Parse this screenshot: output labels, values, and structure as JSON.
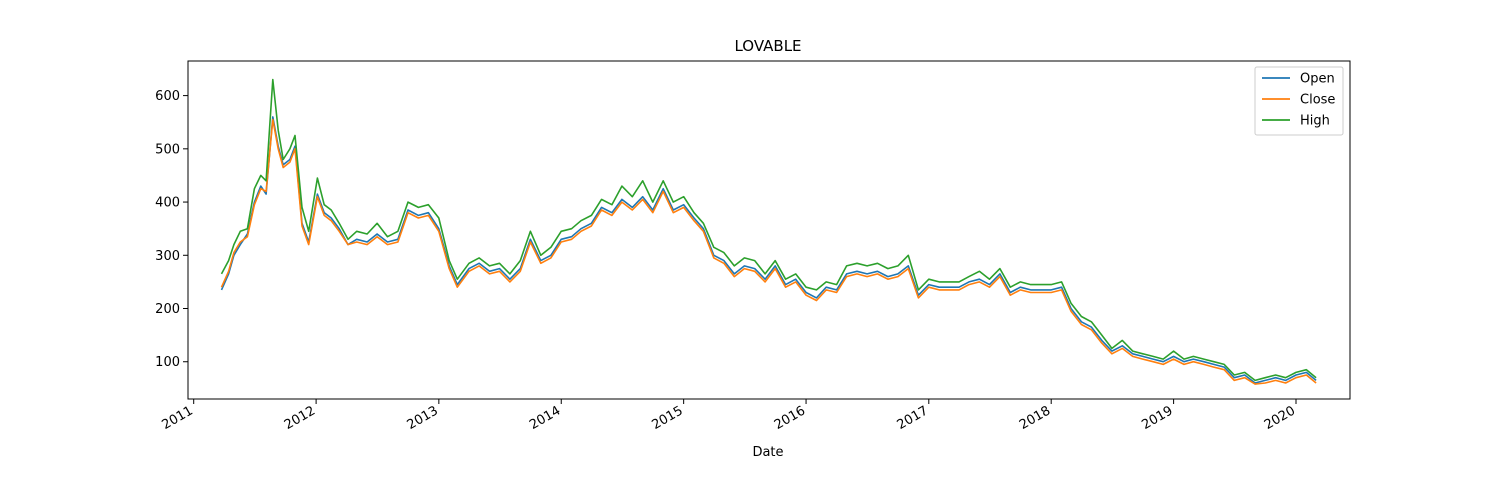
{
  "chart_data": {
    "type": "line",
    "title": "LOVABLE",
    "xlabel": "Date",
    "ylabel": "",
    "xlim": [
      "2010-12-15",
      "2020-06-10"
    ],
    "ylim": [
      30,
      665
    ],
    "yticks": [
      100,
      200,
      300,
      400,
      500,
      600
    ],
    "xticks": [
      "2011",
      "2012",
      "2013",
      "2014",
      "2015",
      "2016",
      "2017",
      "2018",
      "2019",
      "2020"
    ],
    "legend_position": "top-right",
    "grid": false,
    "series": [
      {
        "name": "Open",
        "color": "#1f77b4"
      },
      {
        "name": "Close",
        "color": "#ff7f0e"
      },
      {
        "name": "High",
        "color": "#2ca02c"
      }
    ],
    "x": [
      "2011-03-25",
      "2011-04-15",
      "2011-05-01",
      "2011-05-20",
      "2011-06-10",
      "2011-07-01",
      "2011-07-20",
      "2011-08-05",
      "2011-08-25",
      "2011-09-10",
      "2011-09-25",
      "2011-10-15",
      "2011-10-30",
      "2011-11-20",
      "2011-12-10",
      "2012-01-05",
      "2012-01-25",
      "2012-02-15",
      "2012-03-10",
      "2012-04-05",
      "2012-05-01",
      "2012-06-01",
      "2012-07-01",
      "2012-08-01",
      "2012-09-01",
      "2012-10-01",
      "2012-11-01",
      "2012-12-01",
      "2013-01-01",
      "2013-02-01",
      "2013-02-25",
      "2013-04-01",
      "2013-05-01",
      "2013-06-01",
      "2013-07-01",
      "2013-08-01",
      "2013-09-01",
      "2013-10-01",
      "2013-11-01",
      "2013-12-01",
      "2014-01-01",
      "2014-02-01",
      "2014-03-01",
      "2014-04-01",
      "2014-05-01",
      "2014-06-01",
      "2014-07-01",
      "2014-08-01",
      "2014-09-01",
      "2014-10-01",
      "2014-11-01",
      "2014-12-01",
      "2015-01-01",
      "2015-02-01",
      "2015-03-01",
      "2015-04-01",
      "2015-05-01",
      "2015-06-01",
      "2015-07-01",
      "2015-08-01",
      "2015-09-01",
      "2015-10-01",
      "2015-11-01",
      "2015-12-01",
      "2016-01-01",
      "2016-02-01",
      "2016-03-01",
      "2016-04-01",
      "2016-05-01",
      "2016-06-01",
      "2016-07-01",
      "2016-08-01",
      "2016-09-01",
      "2016-10-01",
      "2016-11-01",
      "2016-12-01",
      "2017-01-01",
      "2017-02-01",
      "2017-03-01",
      "2017-04-01",
      "2017-05-01",
      "2017-06-01",
      "2017-07-01",
      "2017-08-01",
      "2017-09-01",
      "2017-10-01",
      "2017-11-01",
      "2017-12-01",
      "2018-01-01",
      "2018-02-01",
      "2018-03-01",
      "2018-04-01",
      "2018-05-01",
      "2018-06-01",
      "2018-07-01",
      "2018-08-01",
      "2018-09-01",
      "2018-10-01",
      "2018-11-01",
      "2018-12-01",
      "2019-01-01",
      "2019-02-01",
      "2019-03-01",
      "2019-04-01",
      "2019-05-01",
      "2019-06-01",
      "2019-07-01",
      "2019-08-01",
      "2019-09-01",
      "2019-10-01",
      "2019-11-01",
      "2019-12-01",
      "2020-01-01",
      "2020-02-01",
      "2020-03-01"
    ],
    "values": [
      [
        235,
        265,
        300,
        320,
        340,
        400,
        430,
        415,
        560,
        505,
        470,
        480,
        505,
        360,
        325,
        415,
        380,
        370,
        350,
        320,
        330,
        325,
        340,
        325,
        330,
        385,
        375,
        380,
        350,
        280,
        245,
        275,
        285,
        270,
        275,
        255,
        275,
        330,
        290,
        300,
        330,
        335,
        350,
        360,
        390,
        380,
        405,
        390,
        410,
        385,
        425,
        385,
        395,
        370,
        350,
        300,
        290,
        265,
        280,
        275,
        255,
        280,
        245,
        255,
        230,
        220,
        240,
        235,
        265,
        270,
        265,
        270,
        260,
        265,
        280,
        225,
        245,
        240,
        240,
        240,
        250,
        255,
        245,
        265,
        230,
        240,
        235,
        235,
        235,
        240,
        200,
        175,
        165,
        140,
        120,
        130,
        115,
        110,
        105,
        100,
        110,
        100,
        105,
        100,
        95,
        90,
        70,
        75,
        60,
        65,
        70,
        65,
        75,
        80,
        65
      ],
      [
        240,
        270,
        305,
        325,
        335,
        395,
        425,
        420,
        555,
        500,
        465,
        475,
        500,
        355,
        320,
        410,
        375,
        365,
        345,
        320,
        325,
        320,
        335,
        320,
        325,
        380,
        370,
        375,
        345,
        275,
        240,
        270,
        280,
        265,
        270,
        250,
        270,
        325,
        285,
        295,
        325,
        330,
        345,
        355,
        385,
        375,
        400,
        385,
        405,
        380,
        420,
        380,
        390,
        365,
        345,
        295,
        285,
        260,
        275,
        270,
        250,
        275,
        240,
        250,
        225,
        215,
        235,
        230,
        260,
        265,
        260,
        265,
        255,
        260,
        275,
        220,
        240,
        235,
        235,
        235,
        245,
        250,
        240,
        260,
        225,
        235,
        230,
        230,
        230,
        235,
        195,
        170,
        160,
        135,
        115,
        125,
        110,
        105,
        100,
        95,
        105,
        95,
        100,
        95,
        90,
        85,
        65,
        70,
        58,
        60,
        65,
        60,
        70,
        75,
        60
      ],
      [
        265,
        290,
        320,
        345,
        350,
        425,
        450,
        440,
        630,
        535,
        480,
        500,
        525,
        390,
        345,
        445,
        395,
        385,
        360,
        330,
        345,
        340,
        360,
        335,
        345,
        400,
        390,
        395,
        370,
        290,
        255,
        285,
        295,
        280,
        285,
        265,
        290,
        345,
        300,
        315,
        345,
        350,
        365,
        375,
        405,
        395,
        430,
        410,
        440,
        400,
        440,
        400,
        410,
        380,
        360,
        315,
        305,
        280,
        295,
        290,
        265,
        290,
        255,
        265,
        240,
        235,
        250,
        245,
        280,
        285,
        280,
        285,
        275,
        280,
        300,
        235,
        255,
        250,
        250,
        250,
        260,
        270,
        255,
        275,
        240,
        250,
        245,
        245,
        245,
        250,
        210,
        185,
        175,
        150,
        125,
        140,
        120,
        115,
        110,
        105,
        120,
        105,
        110,
        105,
        100,
        95,
        75,
        80,
        65,
        70,
        75,
        70,
        80,
        85,
        70
      ]
    ]
  }
}
